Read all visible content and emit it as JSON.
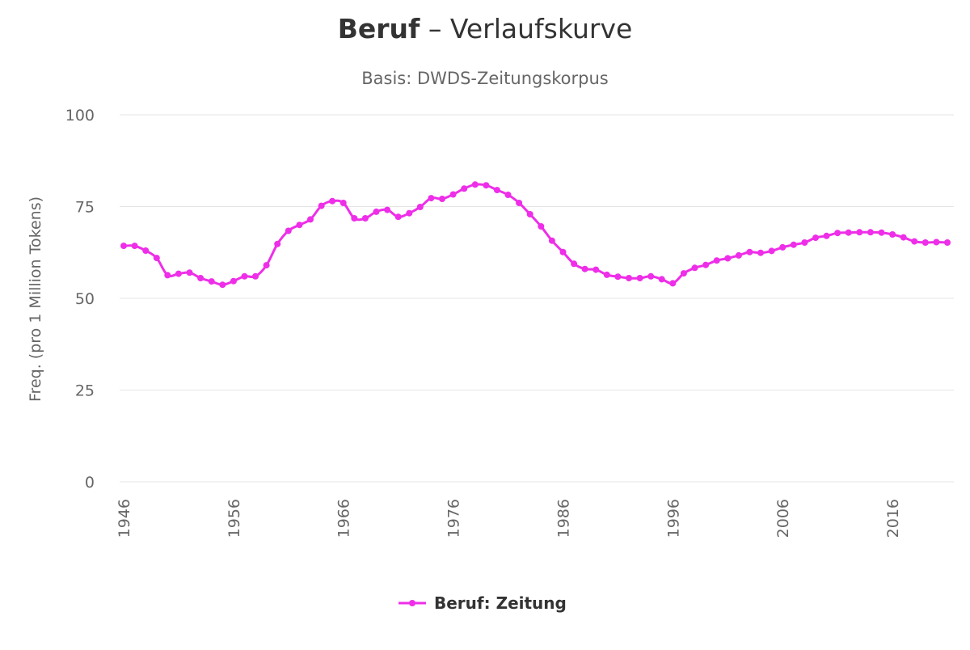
{
  "title": {
    "keyword": "Beruf",
    "rest": " – Verlaufskurve"
  },
  "subtitle": "Basis: DWDS-Zeitungskorpus",
  "colors": {
    "series": "#ee2ee8",
    "grid": "#e6e6e6",
    "text": "#666666",
    "title": "#333333"
  },
  "legend": {
    "position": "bottom-center",
    "label": "Beruf: Zeitung"
  },
  "chart_data": {
    "type": "line",
    "title": "Beruf – Verlaufskurve",
    "subtitle": "Basis: DWDS-Zeitungskorpus",
    "xlabel": "",
    "ylabel": "Freq. (pro 1 Million Tokens)",
    "ylim": [
      0,
      100
    ],
    "xlim": [
      1946,
      2021
    ],
    "y_ticks": [
      "0",
      "25",
      "50",
      "75",
      "100"
    ],
    "x_ticks": [
      "1946",
      "1956",
      "1966",
      "1976",
      "1986",
      "1996",
      "2006",
      "2016"
    ],
    "grid": true,
    "markers": true,
    "legend_position": "bottom-center",
    "series": [
      {
        "name": "Beruf: Zeitung",
        "x": [
          1946,
          1947,
          1948,
          1949,
          1950,
          1951,
          1952,
          1953,
          1954,
          1955,
          1956,
          1957,
          1958,
          1959,
          1960,
          1961,
          1962,
          1963,
          1964,
          1965,
          1966,
          1967,
          1968,
          1969,
          1970,
          1971,
          1972,
          1973,
          1974,
          1975,
          1976,
          1977,
          1978,
          1979,
          1980,
          1981,
          1982,
          1983,
          1984,
          1985,
          1986,
          1987,
          1988,
          1989,
          1990,
          1991,
          1992,
          1993,
          1994,
          1995,
          1996,
          1997,
          1998,
          1999,
          2000,
          2001,
          2002,
          2003,
          2004,
          2005,
          2006,
          2007,
          2008,
          2009,
          2010,
          2011,
          2012,
          2013,
          2014,
          2015,
          2016,
          2017,
          2018,
          2019,
          2020,
          2021
        ],
        "y": [
          64.3,
          64.3,
          63.0,
          61.0,
          56.3,
          56.7,
          57.0,
          55.5,
          54.6,
          53.7,
          54.7,
          56.0,
          56.0,
          59.0,
          64.8,
          68.4,
          70.0,
          71.5,
          75.2,
          76.5,
          76.0,
          71.8,
          71.8,
          73.6,
          74.1,
          72.2,
          73.2,
          74.9,
          77.3,
          77.1,
          78.3,
          79.9,
          81.0,
          80.8,
          79.5,
          78.2,
          76.0,
          72.9,
          69.6,
          65.7,
          62.6,
          59.4,
          58.0,
          57.8,
          56.4,
          55.9,
          55.5,
          55.5,
          56.0,
          55.2,
          54.1,
          56.8,
          58.3,
          59.1,
          60.3,
          60.9,
          61.7,
          62.6,
          62.4,
          62.9,
          63.9,
          64.6,
          65.2,
          66.5,
          67.0,
          67.8,
          67.9,
          68.0,
          68.0,
          67.9,
          67.4,
          66.6,
          65.5,
          65.2,
          65.3,
          65.2
        ]
      }
    ]
  }
}
